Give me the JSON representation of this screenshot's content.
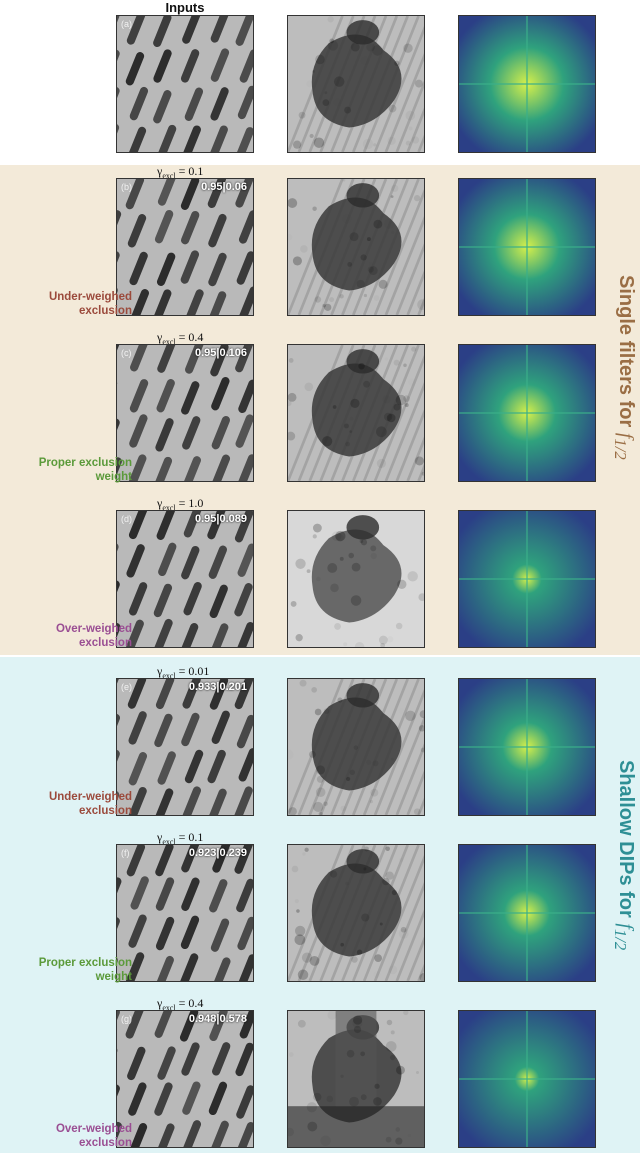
{
  "header": {
    "inputs": "Inputs"
  },
  "groups": {
    "single": {
      "title": "Single filters for ",
      "symbol": "f",
      "sub": "1/2",
      "color": "#9a6e45"
    },
    "shallow": {
      "title": "Shallow DIPs for ",
      "symbol": "f",
      "sub": "1/2",
      "color": "#2e8f95"
    }
  },
  "rows": [
    {
      "letter": "(a)",
      "gamma_label": "",
      "gamma_value": "",
      "metric": "",
      "label": ""
    },
    {
      "letter": "(b)",
      "gamma_label": "γ",
      "gamma_sub": "excl",
      "gamma_value": " = 0.1",
      "metric": "0.95|0.06",
      "label": "Under-weighed\nexclusion",
      "label_color": "#9b4a3c"
    },
    {
      "letter": "(c)",
      "gamma_label": "γ",
      "gamma_sub": "excl",
      "gamma_value": " = 0.4",
      "metric": "0.95|0.106",
      "label": "Proper exclusion\nweight",
      "label_color": "#5b9a3a"
    },
    {
      "letter": "(d)",
      "gamma_label": "γ",
      "gamma_sub": "excl",
      "gamma_value": " = 1.0",
      "metric": "0.95|0.089",
      "label": "Over-weighed\nexclusion",
      "label_color": "#9a4e93"
    },
    {
      "letter": "(e)",
      "gamma_label": "γ",
      "gamma_sub": "excl",
      "gamma_value": " = 0.01",
      "metric": "0.933|0.201",
      "label": "Under-weighed\nexclusion",
      "label_color": "#9b4a3c"
    },
    {
      "letter": "(f)",
      "gamma_label": "γ",
      "gamma_sub": "excl",
      "gamma_value": " = 0.1",
      "metric": "0.923|0.239",
      "label": "Proper exclusion\nweight",
      "label_color": "#5b9a3a"
    },
    {
      "letter": "(g)",
      "gamma_label": "γ",
      "gamma_sub": "excl",
      "gamma_value": " = 0.4",
      "metric": "0.948|0.578",
      "label": "Over-weighed\nexclusion",
      "label_color": "#9a4e93"
    }
  ]
}
